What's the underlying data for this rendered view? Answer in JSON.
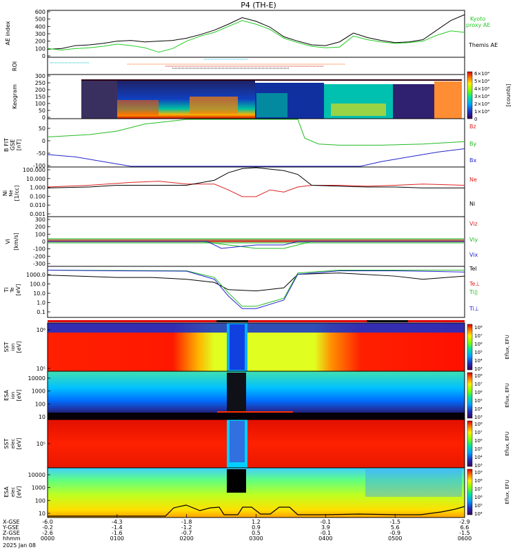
{
  "title": "P4 (TH-E)",
  "timestamp": "2025 Jan 08",
  "ae_panel": {
    "ylabel": "AE index",
    "ticks": [
      "600",
      "500",
      "400",
      "300",
      "200",
      "100",
      "0"
    ],
    "legend_kyoto": "Kyoto",
    "legend_proxy": "proxy AE",
    "legend_themis": "Themis AE",
    "kyoto_color": "#22cc22",
    "themis_color": "#000000"
  },
  "roi_panel": {
    "ylabel": "ROI"
  },
  "keogram_panel": {
    "ylabel": "Keogram",
    "ticks": [
      "300",
      "250",
      "200",
      "150",
      "100",
      "50",
      "0"
    ],
    "colorbar_ticks": [
      "6×10⁴",
      "5×10⁴",
      "4×10⁴",
      "3×10⁴",
      "2×10⁴",
      "1×10⁴",
      "0"
    ],
    "colorbar_label": "[counts]"
  },
  "bfield_panel": {
    "ylabel": "B FIT",
    "ylabel2": "GSE",
    "units": "[nT]",
    "ticks": [
      "50",
      "0",
      "-50",
      "-100"
    ],
    "legend": [
      {
        "label": "Bz",
        "color": "#dd2222"
      },
      {
        "label": "By",
        "color": "#22bb22"
      },
      {
        "label": "Bx",
        "color": "#2222cc"
      }
    ]
  },
  "density_panel": {
    "ylabel": "Ni",
    "ylabel2": "Ne",
    "units": "[1/cc]",
    "ticks": [
      "100.000",
      "10.000",
      "1.000",
      "0.100",
      "0.010",
      "0.001"
    ],
    "legend": [
      {
        "label": "Ne",
        "color": "#dd2222"
      },
      {
        "label": "Ni",
        "color": "#000000"
      }
    ]
  },
  "velocity_panel": {
    "ylabel": "Vi",
    "units": "[km/s]",
    "ticks": [
      "300",
      "200",
      "100",
      "0",
      "-100",
      "-200",
      "-300"
    ],
    "legend": [
      {
        "label": "Viz",
        "color": "#dd2222"
      },
      {
        "label": "Viy",
        "color": "#22bb22"
      },
      {
        "label": "Vix",
        "color": "#2222cc"
      }
    ]
  },
  "temp_panel": {
    "ylabel": "Ti",
    "ylabel2": "Te",
    "units": "[eV]",
    "ticks": [
      "1000.0",
      "100.0",
      "10.0",
      "1.0",
      "0.1"
    ],
    "legend": [
      {
        "label": "Tel",
        "color": "#000000"
      },
      {
        "label": "Te⊥",
        "color": "#dd2222"
      },
      {
        "label": "Ti||",
        "color": "#22bb22"
      },
      {
        "label": "Ti⊥",
        "color": "#2222cc"
      }
    ]
  },
  "spectro_panels": [
    {
      "ylabel": "SST",
      "ysub": "[eV]",
      "species": "ion",
      "ticks": [
        "10⁶",
        "10⁵"
      ],
      "cbar_ticks": [
        "10⁸",
        "10⁷",
        "10⁶",
        "10⁵",
        "10⁴",
        "10³"
      ],
      "cbar_label": "Eflux, EFU"
    },
    {
      "ylabel": "ESA",
      "ysub": "[eV]",
      "species": "ion",
      "ticks": [
        "10000",
        "1000",
        "100",
        "10"
      ],
      "cbar_ticks": [
        "10⁸",
        "10⁷",
        "10⁶",
        "10⁵",
        "10⁴",
        "10³"
      ],
      "cbar_label": "Eflux, EFU"
    },
    {
      "ylabel": "SST",
      "ysub": "[eV]",
      "species": "elec",
      "ticks": [
        "10⁵"
      ],
      "cbar_ticks": [
        "10⁸",
        "10⁷",
        "10⁶",
        "10⁵",
        "10⁴",
        "10³"
      ],
      "cbar_label": "Eflux, EFU"
    },
    {
      "ylabel": "ESA",
      "ysub": "[eV]",
      "species": "elec",
      "ticks": [
        "10000",
        "1000",
        "100",
        "10"
      ],
      "cbar_ticks": [
        "10⁹",
        "10⁸",
        "10⁷",
        "10⁶",
        "10⁵",
        "10⁴"
      ],
      "cbar_label": "Eflux, EFU"
    }
  ],
  "xaxis": {
    "row_labels": [
      "X-GSE",
      "Y-GSE",
      "Z-GSE",
      "hhmm"
    ],
    "ticks": [
      {
        "time": "0000",
        "x": "-6.0",
        "y": "-0.2",
        "z": "-2.6"
      },
      {
        "time": "0100",
        "x": "-4.3",
        "y": "-1.4",
        "z": "-1.6"
      },
      {
        "time": "0200",
        "x": "-1.8",
        "y": "-1.2",
        "z": "-0.7"
      },
      {
        "time": "0300",
        "x": "1.2",
        "y": "0.9",
        "z": "0.5"
      },
      {
        "time": "0400",
        "x": "-0.1",
        "y": "3.9",
        "z": "-0.1"
      },
      {
        "time": "0500",
        "x": "-1.5",
        "y": "5.6",
        "z": "-0.9"
      },
      {
        "time": "0600",
        "x": "-2.9",
        "y": "6.6",
        "z": "-1.5"
      }
    ]
  },
  "chart_data": [
    {
      "type": "line",
      "id": "ae",
      "ylim": [
        0,
        600
      ],
      "x_hours": [
        0,
        0.2,
        0.4,
        0.6,
        0.8,
        1.0,
        1.2,
        1.4,
        1.6,
        1.8,
        2.0,
        2.2,
        2.4,
        2.6,
        2.8,
        3.0,
        3.2,
        3.4,
        3.6,
        3.8,
        4.0,
        4.2,
        4.4,
        4.6,
        4.8,
        5.0,
        5.2,
        5.4,
        5.6,
        5.8,
        6.0
      ],
      "series": [
        {
          "name": "Themis AE",
          "color": "#000000",
          "values": [
            90,
            100,
            140,
            150,
            170,
            200,
            210,
            190,
            200,
            210,
            240,
            290,
            350,
            430,
            520,
            470,
            390,
            260,
            200,
            150,
            140,
            190,
            310,
            250,
            210,
            180,
            190,
            220,
            350,
            480,
            560
          ]
        },
        {
          "name": "Kyoto proxy AE",
          "color": "#22cc22",
          "values": [
            100,
            80,
            100,
            110,
            130,
            160,
            140,
            110,
            50,
            100,
            200,
            270,
            320,
            400,
            480,
            430,
            360,
            240,
            180,
            130,
            110,
            120,
            270,
            220,
            190,
            170,
            180,
            200,
            280,
            340,
            320
          ]
        }
      ]
    },
    {
      "type": "line",
      "id": "bfield",
      "ylim": [
        -100,
        100
      ],
      "series": [
        {
          "name": "Bz",
          "color": "#dd2222",
          "points": []
        },
        {
          "name": "By",
          "color": "#22bb22",
          "points": [
            [
              0,
              25
            ],
            [
              0.6,
              35
            ],
            [
              1.0,
              50
            ],
            [
              1.4,
              80
            ],
            [
              2.0,
              100
            ],
            [
              3.6,
              100
            ],
            [
              3.7,
              20
            ],
            [
              3.9,
              -5
            ],
            [
              4.2,
              -10
            ],
            [
              4.8,
              -10
            ],
            [
              5.4,
              -5
            ],
            [
              6.0,
              5
            ]
          ]
        },
        {
          "name": "Bx",
          "color": "#2222cc",
          "points": [
            [
              0,
              -50
            ],
            [
              0.4,
              -60
            ],
            [
              0.8,
              -80
            ],
            [
              1.2,
              -100
            ],
            [
              4.5,
              -100
            ],
            [
              4.8,
              -80
            ],
            [
              5.2,
              -60
            ],
            [
              5.6,
              -40
            ],
            [
              6.0,
              -25
            ]
          ]
        }
      ]
    },
    {
      "type": "line",
      "id": "density",
      "scale": "log",
      "ylim": [
        0.001,
        100
      ],
      "series": [
        {
          "name": "Ne",
          "color": "#dd2222",
          "points": [
            [
              0,
              1
            ],
            [
              0.6,
              1.5
            ],
            [
              1.2,
              3
            ],
            [
              1.6,
              4
            ],
            [
              2.0,
              2
            ],
            [
              2.4,
              2
            ],
            [
              2.6,
              0.5
            ],
            [
              2.8,
              0.1
            ],
            [
              3.0,
              0.1
            ],
            [
              3.2,
              0.5
            ],
            [
              3.4,
              0.3
            ],
            [
              3.6,
              1
            ],
            [
              3.8,
              1.5
            ],
            [
              4.2,
              1.5
            ],
            [
              4.6,
              1.2
            ],
            [
              5.0,
              1.5
            ],
            [
              5.4,
              2
            ],
            [
              6.0,
              1.5
            ]
          ]
        },
        {
          "name": "Ni",
          "color": "#000000",
          "points": [
            [
              0,
              0.8
            ],
            [
              0.6,
              1
            ],
            [
              1.0,
              1.5
            ],
            [
              1.6,
              1.5
            ],
            [
              2.0,
              1.5
            ],
            [
              2.4,
              5
            ],
            [
              2.6,
              30
            ],
            [
              2.8,
              80
            ],
            [
              3.0,
              100
            ],
            [
              3.2,
              70
            ],
            [
              3.4,
              50
            ],
            [
              3.6,
              20
            ],
            [
              3.8,
              1.5
            ],
            [
              4.2,
              1.2
            ],
            [
              4.6,
              1
            ],
            [
              5.0,
              1
            ],
            [
              5.4,
              0.8
            ],
            [
              6.0,
              0.8
            ]
          ]
        }
      ]
    },
    {
      "type": "line",
      "id": "velocity",
      "ylim": [
        -350,
        350
      ],
      "series": [
        {
          "name": "Viz",
          "color": "#dd2222",
          "points": [
            [
              0,
              0
            ],
            [
              1,
              0
            ],
            [
              2,
              0
            ],
            [
              3,
              0
            ],
            [
              4,
              0
            ],
            [
              5,
              0
            ],
            [
              6,
              0
            ]
          ]
        },
        {
          "name": "Viy",
          "color": "#22bb22",
          "points": [
            [
              0,
              0
            ],
            [
              2.2,
              0
            ],
            [
              2.6,
              -50
            ],
            [
              3.0,
              -100
            ],
            [
              3.4,
              -100
            ],
            [
              3.6,
              -50
            ],
            [
              3.8,
              0
            ],
            [
              6,
              0
            ]
          ]
        },
        {
          "name": "Vix",
          "color": "#2222cc",
          "points": [
            [
              0,
              0
            ],
            [
              2.3,
              0
            ],
            [
              2.5,
              -100
            ],
            [
              2.8,
              -70
            ],
            [
              3.0,
              -50
            ],
            [
              3.4,
              -50
            ],
            [
              3.6,
              0
            ],
            [
              6,
              0
            ]
          ]
        }
      ]
    },
    {
      "type": "line",
      "id": "temperature",
      "scale": "log",
      "ylim": [
        0.05,
        3000
      ],
      "series": [
        {
          "name": "Tel",
          "color": "#000000",
          "points": [
            [
              0,
              500
            ],
            [
              1.0,
              300
            ],
            [
              1.5,
              300
            ],
            [
              2.0,
              200
            ],
            [
              2.4,
              100
            ],
            [
              2.6,
              20
            ],
            [
              3.0,
              15
            ],
            [
              3.4,
              30
            ],
            [
              3.6,
              600
            ],
            [
              4.2,
              800
            ],
            [
              5.0,
              400
            ],
            [
              5.4,
              200
            ],
            [
              6.0,
              400
            ]
          ]
        },
        {
          "name": "Ti||",
          "color": "#22bb22",
          "points": [
            [
              0,
              1500
            ],
            [
              1,
              1400
            ],
            [
              2,
              1300
            ],
            [
              2.4,
              300
            ],
            [
              2.6,
              10
            ],
            [
              2.8,
              0.5
            ],
            [
              3.0,
              0.5
            ],
            [
              3.4,
              3
            ],
            [
              3.6,
              800
            ],
            [
              4.2,
              1500
            ],
            [
              5,
              1500
            ],
            [
              6,
              1500
            ]
          ]
        },
        {
          "name": "Ti⊥",
          "color": "#2222cc",
          "points": [
            [
              0,
              1500
            ],
            [
              1,
              1300
            ],
            [
              2,
              1200
            ],
            [
              2.4,
              200
            ],
            [
              2.6,
              5
            ],
            [
              2.8,
              0.3
            ],
            [
              3.0,
              0.3
            ],
            [
              3.4,
              2
            ],
            [
              3.6,
              600
            ],
            [
              4.2,
              1300
            ],
            [
              5,
              1300
            ],
            [
              6,
              1000
            ]
          ]
        }
      ]
    }
  ]
}
